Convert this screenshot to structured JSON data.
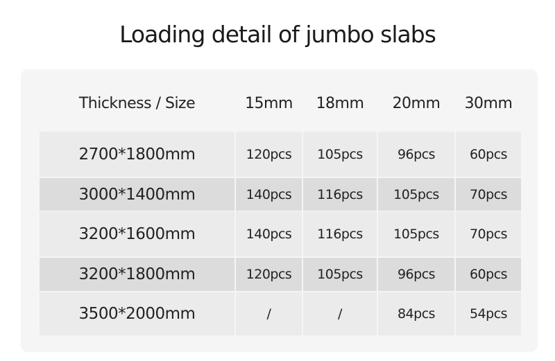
{
  "title": "Loading detail of jumbo slabs",
  "table": {
    "header": [
      "Thickness  /  Size",
      "15mm",
      "18mm",
      "20mm",
      "30mm"
    ],
    "rows": [
      [
        "2700*1800mm",
        "120pcs",
        "105pcs",
        "96pcs",
        "60pcs"
      ],
      [
        "3000*1400mm",
        "140pcs",
        "116pcs",
        "105pcs",
        "70pcs"
      ],
      [
        "3200*1600mm",
        "140pcs",
        "116pcs",
        "105pcs",
        "70pcs"
      ],
      [
        "3200*1800mm",
        "120pcs",
        "105pcs",
        "96pcs",
        "60pcs"
      ],
      [
        "3500*2000mm",
        "/",
        "/",
        "84pcs",
        "54pcs"
      ]
    ]
  },
  "colors": {
    "panel": "#f5f5f5",
    "row_light": "#ebebeb",
    "row_dark": "#dcdcdc"
  }
}
